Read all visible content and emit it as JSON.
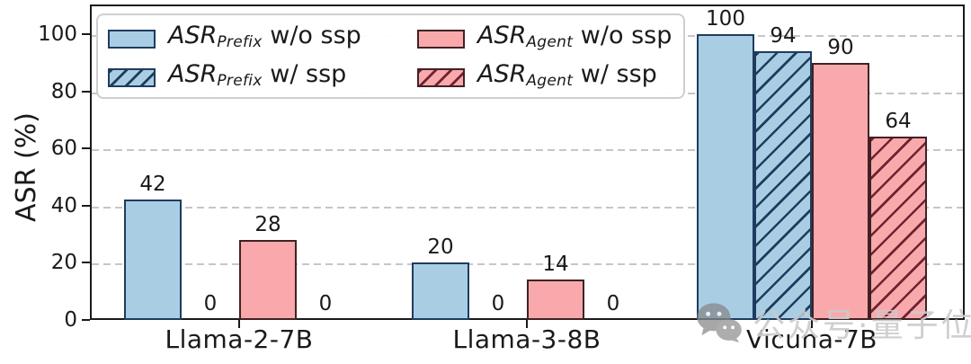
{
  "chart_data": {
    "type": "bar",
    "title": "",
    "xlabel": "",
    "ylabel": "ASR (%)",
    "ylim": [
      0,
      110
    ],
    "yticks": [
      0,
      20,
      40,
      60,
      80,
      100
    ],
    "grid": "horizontal dashed",
    "legend_position": "upper left",
    "categories": [
      "Llama-2-7B",
      "Llama-3-8B",
      "Vicuna-7B"
    ],
    "series": [
      {
        "name": "ASR_Prefix w/o ssp",
        "legend_main": "ASR",
        "legend_sub": "Prefix",
        "legend_suffix": " w/o ssp",
        "fill": "#a9cee4",
        "edge": "#1f3c5e",
        "hatch": false,
        "values": [
          42,
          20,
          100
        ]
      },
      {
        "name": "ASR_Prefix w/ ssp",
        "legend_main": "ASR",
        "legend_sub": "Prefix",
        "legend_suffix": " w/ ssp",
        "fill": "#a9cee4",
        "edge": "#1f3c5e",
        "hatch": true,
        "values": [
          0,
          0,
          94
        ]
      },
      {
        "name": "ASR_Agent w/o ssp",
        "legend_main": "ASR",
        "legend_sub": "Agent",
        "legend_suffix": " w/o ssp",
        "fill": "#f9a9ab",
        "edge": "#402225",
        "hatch": false,
        "values": [
          28,
          14,
          90
        ]
      },
      {
        "name": "ASR_Agent w/ ssp",
        "legend_main": "ASR",
        "legend_sub": "Agent",
        "legend_suffix": " w/ ssp",
        "fill": "#f9a9ab",
        "edge": "#402225",
        "hatch": true,
        "hatch_color": "#6f2331",
        "values": [
          0,
          0,
          64
        ]
      }
    ]
  },
  "watermark": {
    "icon": "wechat-icon",
    "text": "公众号·量子位"
  }
}
